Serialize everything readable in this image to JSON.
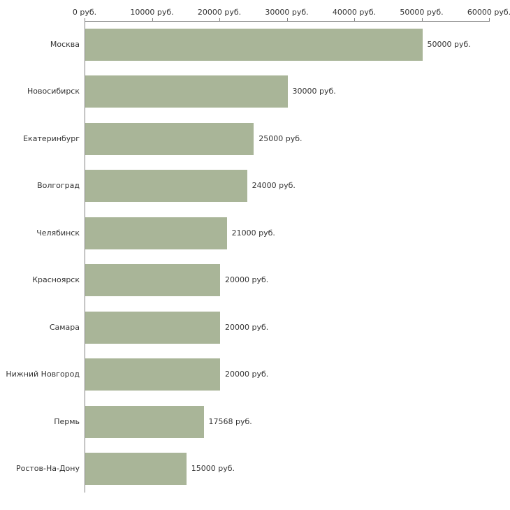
{
  "chart_data": {
    "type": "bar",
    "orientation": "horizontal",
    "title": "",
    "xlabel": "",
    "ylabel": "",
    "categories": [
      "Москва",
      "Новосибирск",
      "Екатеринбург",
      "Волгоград",
      "Челябинск",
      "Красноярск",
      "Самара",
      "Нижний Новгород",
      "Пермь",
      "Ростов-На-Дону"
    ],
    "values": [
      50000,
      30000,
      25000,
      24000,
      21000,
      20000,
      20000,
      20000,
      17568,
      15000
    ],
    "value_labels": [
      "50000 руб.",
      "30000 руб.",
      "25000 руб.",
      "24000 руб.",
      "21000 руб.",
      "20000 руб.",
      "20000 руб.",
      "20000 руб.",
      "17568 руб.",
      "15000 руб."
    ],
    "x_axis": {
      "min": 0,
      "max": 60000,
      "position": "top",
      "ticks": [
        0,
        10000,
        20000,
        30000,
        40000,
        50000,
        60000
      ],
      "tick_labels": [
        "0 руб.",
        "10000 руб.",
        "20000 руб.",
        "30000 руб.",
        "40000 руб.",
        "50000 руб.",
        "60000 руб."
      ]
    },
    "grid": false,
    "legend": false,
    "colors": {
      "bar_fill": "#a9b598",
      "axis": "#808080",
      "text": "#333333",
      "background": "#ffffff"
    }
  }
}
